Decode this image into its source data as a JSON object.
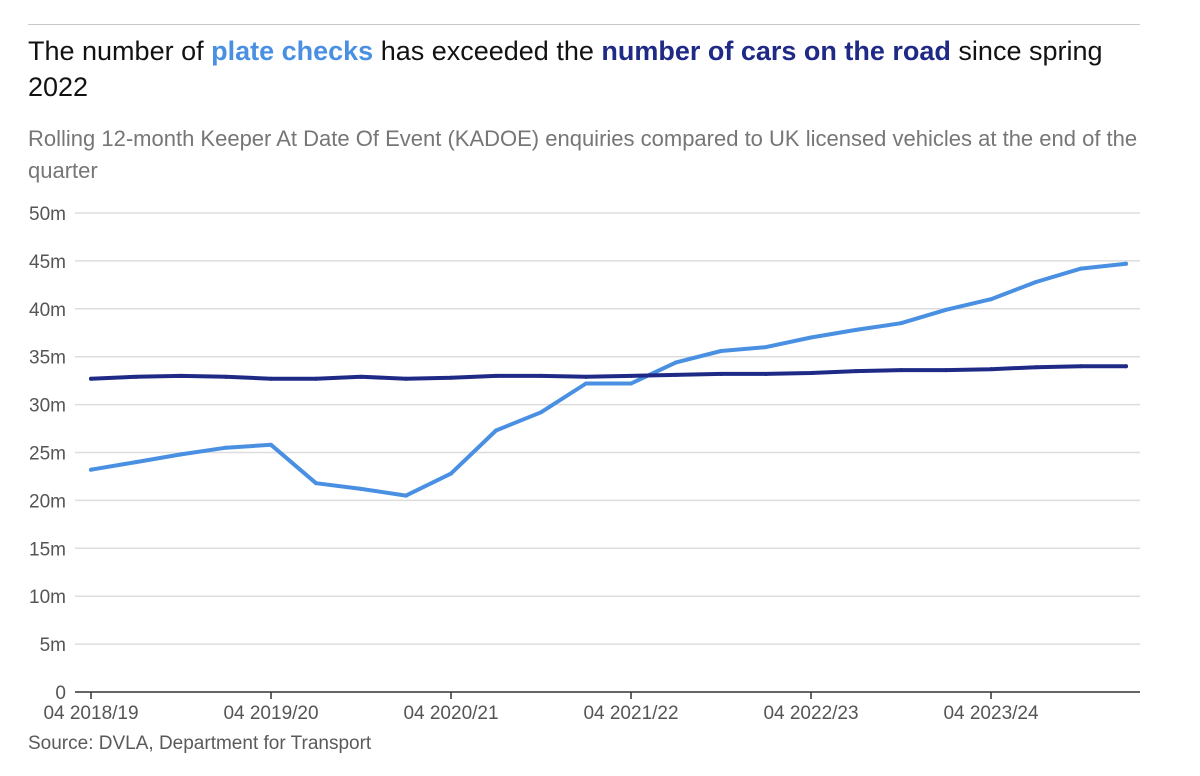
{
  "header": {
    "title_part1": "The number of ",
    "title_highlight1": "plate checks",
    "title_part2": " has exceeded the ",
    "title_highlight2": "number of cars on the road",
    "title_part3": " since spring 2022",
    "subtitle": "Rolling 12-month Keeper At Date Of Event (KADOE) enquiries compared to UK licensed vehicles at the end of the quarter"
  },
  "colors": {
    "plate_checks": "#4a90e2",
    "cars_on_road": "#1f2a86",
    "gridline": "#dddddd",
    "axis": "#333333"
  },
  "source": "Source: DVLA, Department for Transport",
  "chart_data": {
    "type": "line",
    "title": "The number of plate checks has exceeded the number of cars on the road since spring 2022",
    "xlabel": "",
    "ylabel": "",
    "ylim": [
      0,
      50
    ],
    "y_ticks": [
      0,
      5,
      10,
      15,
      20,
      25,
      30,
      35,
      40,
      45,
      50
    ],
    "y_tick_labels": [
      "0",
      "5m",
      "10m",
      "15m",
      "20m",
      "25m",
      "30m",
      "35m",
      "40m",
      "45m",
      "50m"
    ],
    "grid": true,
    "x_index_range": [
      0,
      23
    ],
    "x_ticks": [
      {
        "index": 0,
        "label": "04 2018/19"
      },
      {
        "index": 4,
        "label": "04 2019/20"
      },
      {
        "index": 8,
        "label": "04 2020/21"
      },
      {
        "index": 12,
        "label": "04 2021/22"
      },
      {
        "index": 16,
        "label": "04 2022/23"
      },
      {
        "index": 20,
        "label": "04 2023/24"
      }
    ],
    "series": [
      {
        "name": "plate checks",
        "color": "#4a90e2",
        "values": [
          23.2,
          24.0,
          24.8,
          25.5,
          25.8,
          21.8,
          21.2,
          20.5,
          22.8,
          27.3,
          29.2,
          32.2,
          32.2,
          34.4,
          35.6,
          36.0,
          37.0,
          37.8,
          38.5,
          39.9,
          41.0,
          42.8,
          44.2,
          44.7
        ]
      },
      {
        "name": "number of cars on the road",
        "color": "#1f2a86",
        "values": [
          32.7,
          32.9,
          33.0,
          32.9,
          32.7,
          32.7,
          32.9,
          32.7,
          32.8,
          33.0,
          33.0,
          32.9,
          33.0,
          33.1,
          33.2,
          33.2,
          33.3,
          33.5,
          33.6,
          33.6,
          33.7,
          33.9,
          34.0,
          34.0
        ]
      }
    ]
  }
}
